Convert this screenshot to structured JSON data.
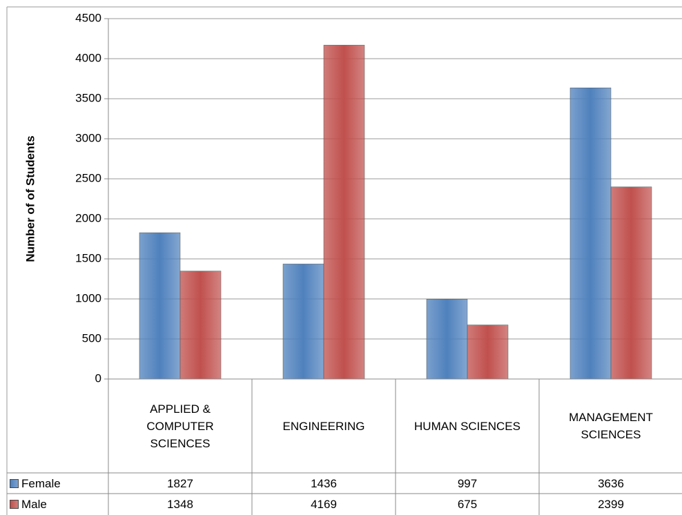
{
  "chart_data": {
    "type": "bar",
    "y_label": "Number of of Students",
    "categories": [
      "APPLIED & COMPUTER SCIENCES",
      "ENGINEERING",
      "HUMAN SCIENCES",
      "MANAGEMENT SCIENCES"
    ],
    "series": [
      {
        "name": "Female",
        "color": "#4f81bd",
        "values": [
          1827,
          1436,
          997,
          3636
        ]
      },
      {
        "name": "Male",
        "color": "#c0504d",
        "values": [
          1348,
          4169,
          675,
          2399
        ]
      }
    ],
    "ylim": [
      0,
      4500
    ],
    "yticks": [
      0,
      500,
      1000,
      1500,
      2000,
      2500,
      3000,
      3500,
      4000,
      4500
    ],
    "grid": true
  }
}
